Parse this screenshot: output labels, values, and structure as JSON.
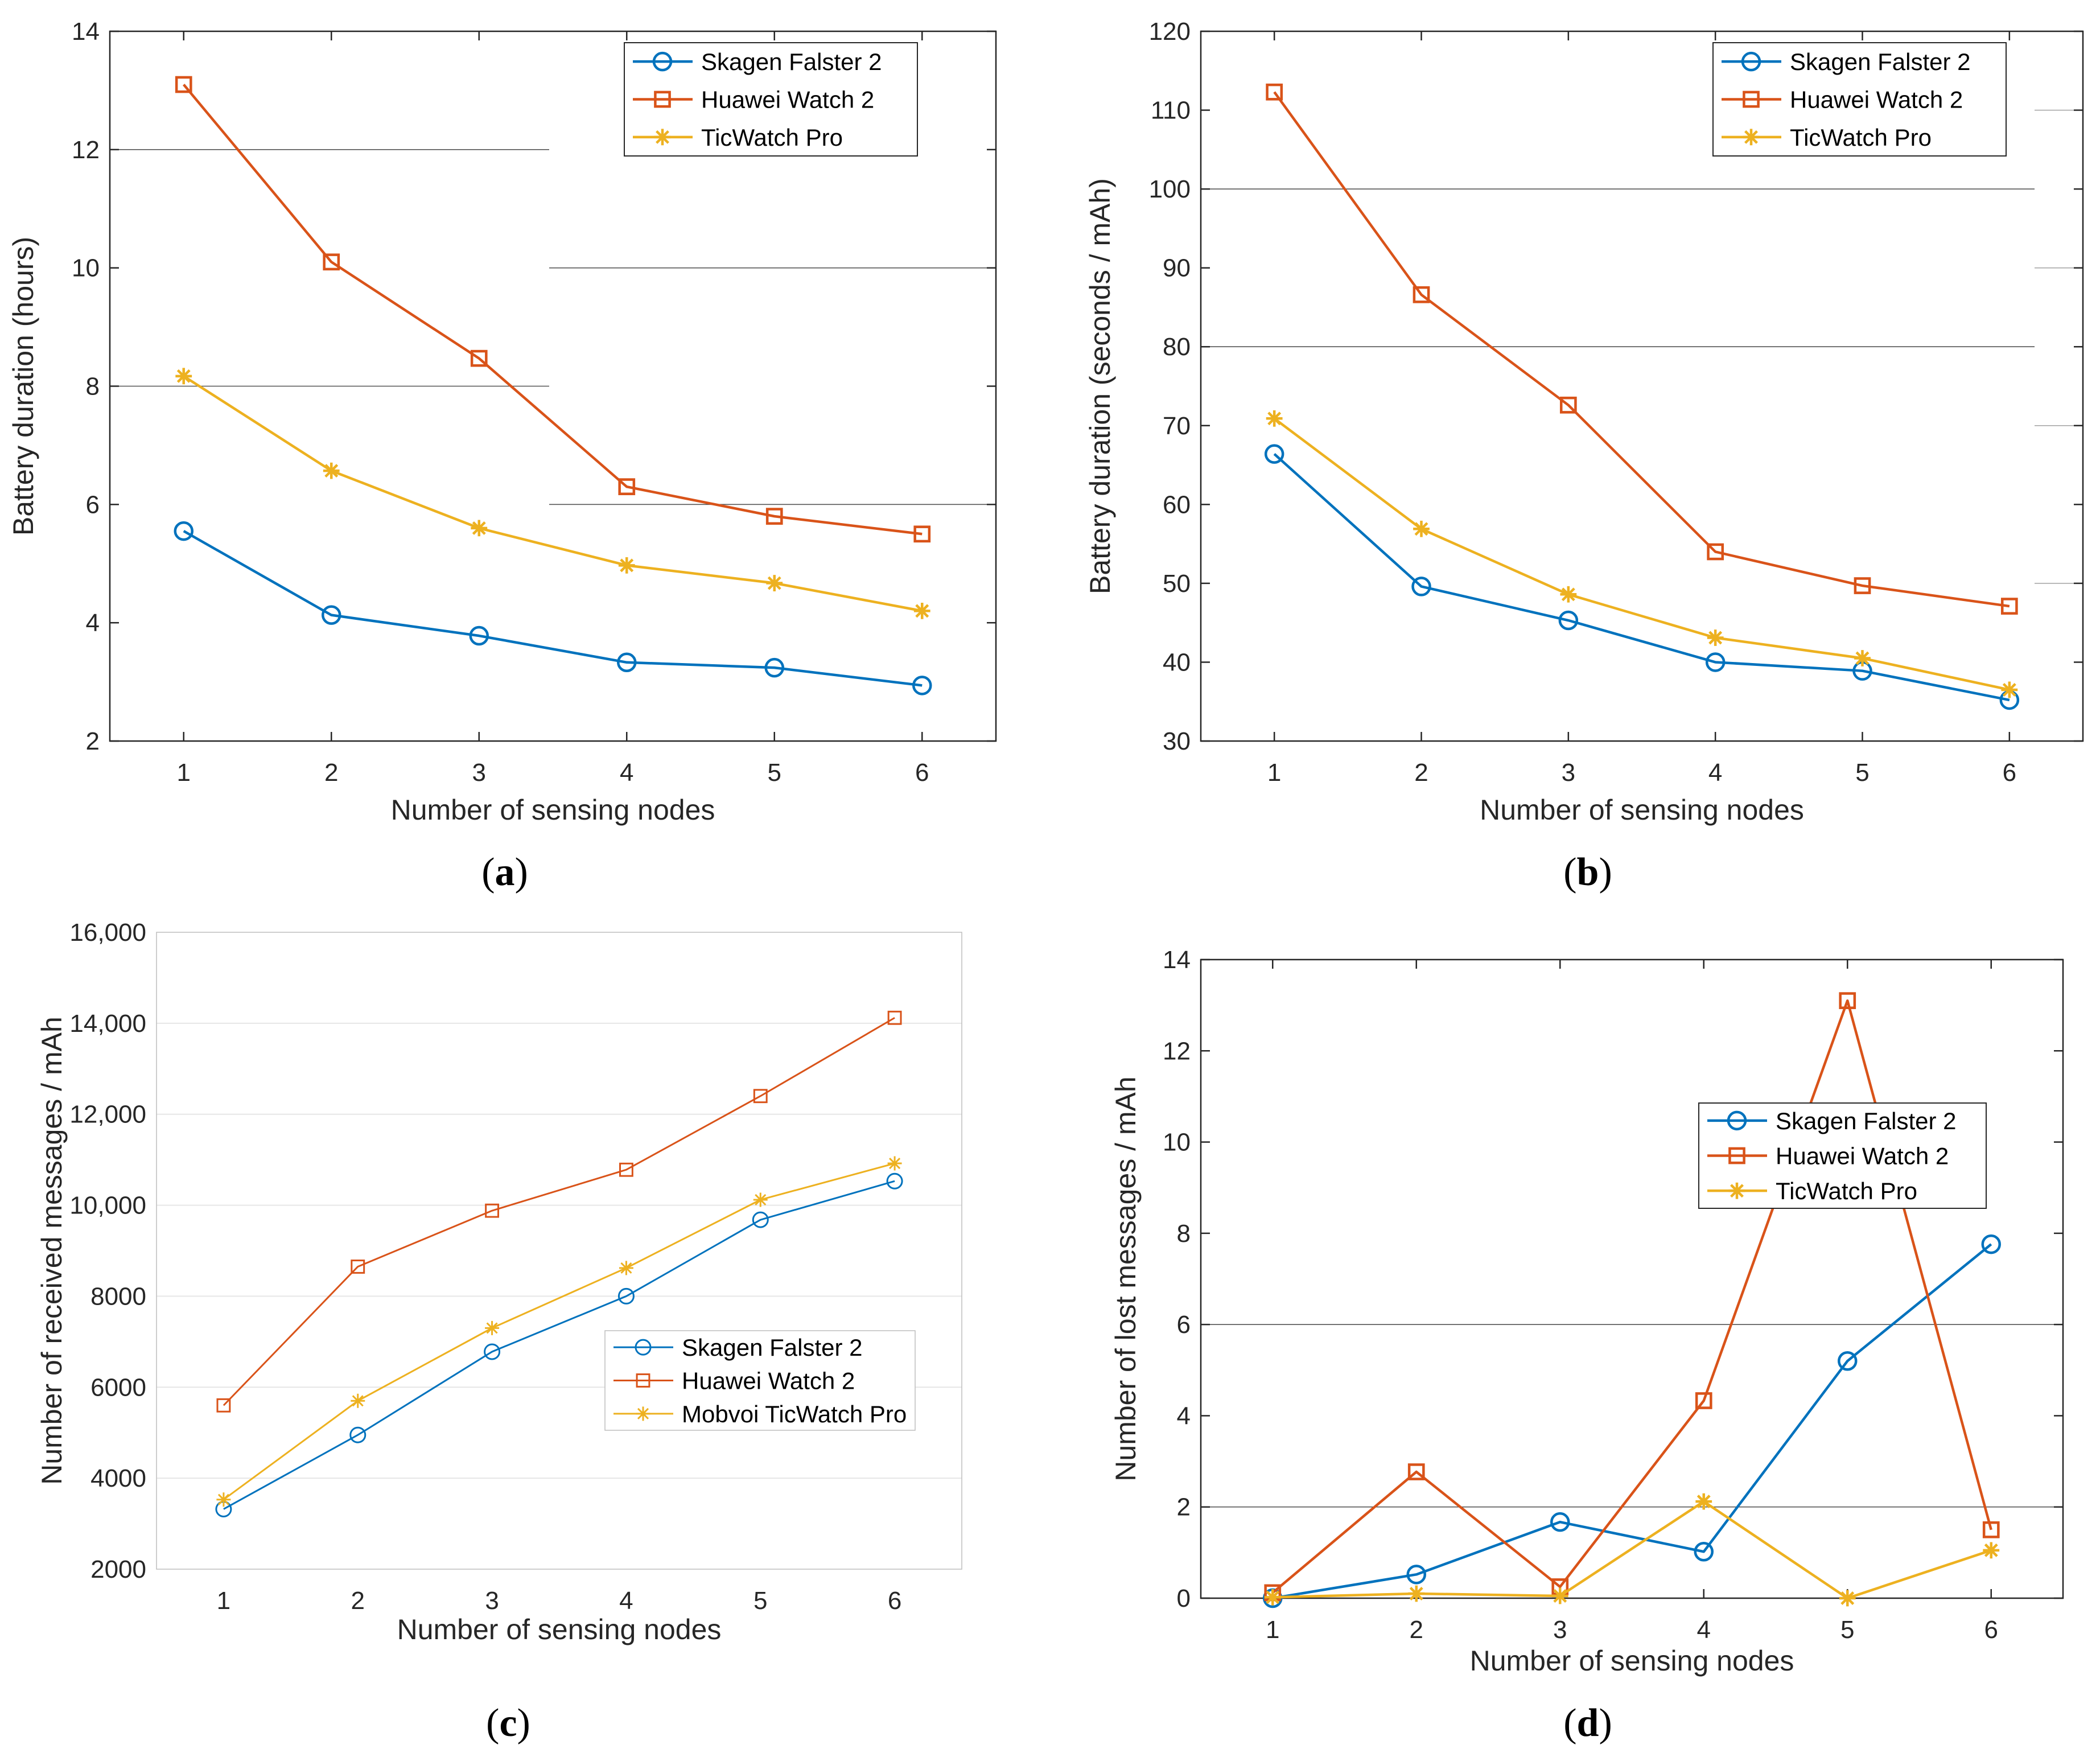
{
  "colors": {
    "skagen": "#0072BD",
    "huawei": "#D95319",
    "ticwatch": "#EDB120",
    "axis": "#262626",
    "grid_c": "#e6e6e6",
    "artifact_line": "#555555"
  },
  "chart_data": [
    {
      "id": "a",
      "type": "line",
      "caption_letter": "a",
      "xlabel": "Number of sensing nodes",
      "ylabel": "Battery duration (hours)",
      "x": [
        1,
        2,
        3,
        4,
        5,
        6
      ],
      "xlim": [
        0.5,
        6.5
      ],
      "ylim": [
        2,
        14
      ],
      "yticks": [
        2,
        4,
        6,
        8,
        10,
        12,
        14
      ],
      "ytick_labels": [
        "2",
        "4",
        "6",
        "8",
        "10",
        "12",
        "14"
      ],
      "legend_position": "top-right",
      "series": [
        {
          "name": "Skagen Falster 2",
          "marker": "circle",
          "color_key": "skagen",
          "values": [
            5.55,
            4.13,
            3.78,
            3.33,
            3.24,
            2.94
          ]
        },
        {
          "name": "Huawei Watch 2",
          "marker": "square",
          "color_key": "huawei",
          "values": [
            13.1,
            10.1,
            8.47,
            6.3,
            5.8,
            5.5
          ]
        },
        {
          "name": "TicWatch Pro",
          "marker": "asterisk",
          "color_key": "ticwatch",
          "values": [
            8.17,
            6.57,
            5.6,
            4.97,
            4.67,
            4.2
          ]
        }
      ]
    },
    {
      "id": "b",
      "type": "line",
      "caption_letter": "b",
      "xlabel": "Number of sensing nodes",
      "ylabel": "Battery duration (seconds / mAh)",
      "x": [
        1,
        2,
        3,
        4,
        5,
        6
      ],
      "xlim": [
        0.5,
        6.5
      ],
      "ylim": [
        30,
        120
      ],
      "yticks": [
        30,
        40,
        50,
        60,
        70,
        80,
        90,
        100,
        110,
        120
      ],
      "ytick_labels": [
        "30",
        "40",
        "50",
        "60",
        "70",
        "80",
        "90",
        "100",
        "110",
        "120"
      ],
      "legend_position": "top-right",
      "series": [
        {
          "name": "Skagen Falster 2",
          "marker": "circle",
          "color_key": "skagen",
          "values": [
            66.4,
            49.6,
            45.3,
            40.0,
            38.9,
            35.2
          ]
        },
        {
          "name": "Huawei Watch 2",
          "marker": "square",
          "color_key": "huawei",
          "values": [
            112.3,
            86.6,
            72.6,
            54.0,
            49.7,
            47.1
          ]
        },
        {
          "name": "TicWatch Pro",
          "marker": "asterisk",
          "color_key": "ticwatch",
          "values": [
            70.9,
            56.9,
            48.6,
            43.1,
            40.5,
            36.5
          ]
        }
      ]
    },
    {
      "id": "c",
      "type": "line",
      "caption_letter": "c",
      "xlabel": "Number of sensing nodes",
      "ylabel": "Number of received messages / mAh",
      "x": [
        1,
        2,
        3,
        4,
        5,
        6
      ],
      "xlim": [
        0.5,
        6.5
      ],
      "ylim": [
        2000,
        16000
      ],
      "yticks": [
        2000,
        4000,
        6000,
        8000,
        10000,
        12000,
        14000,
        16000
      ],
      "ytick_labels": [
        "2000",
        "4000",
        "6000",
        "8000",
        "10,000",
        "12,000",
        "14,000",
        "16,000"
      ],
      "legend_position": "center-right",
      "series": [
        {
          "name": "Skagen Falster 2",
          "marker": "circle",
          "color_key": "skagen",
          "values": [
            3320,
            4950,
            6780,
            8000,
            9680,
            10530
          ]
        },
        {
          "name": "Huawei Watch 2",
          "marker": "square",
          "color_key": "huawei",
          "values": [
            5600,
            8650,
            9880,
            10780,
            12400,
            14120
          ]
        },
        {
          "name": "Mobvoi TicWatch Pro",
          "marker": "asterisk",
          "color_key": "ticwatch",
          "values": [
            3530,
            5700,
            7300,
            8620,
            10120,
            10920
          ]
        }
      ]
    },
    {
      "id": "d",
      "type": "line",
      "caption_letter": "d",
      "xlabel": "Number of sensing nodes",
      "ylabel": "Number of lost messages / mAh",
      "x": [
        1,
        2,
        3,
        4,
        5,
        6
      ],
      "xlim": [
        0.5,
        6.5
      ],
      "ylim": [
        0,
        14
      ],
      "yticks": [
        0,
        2,
        4,
        6,
        8,
        10,
        12,
        14
      ],
      "ytick_labels": [
        "0",
        "2",
        "4",
        "6",
        "8",
        "10",
        "12",
        "14"
      ],
      "legend_position": "center-right",
      "series": [
        {
          "name": "Skagen Falster 2",
          "marker": "circle",
          "color_key": "skagen",
          "values": [
            0.0,
            0.52,
            1.67,
            1.02,
            5.2,
            7.76
          ]
        },
        {
          "name": "Huawei Watch 2",
          "marker": "square",
          "color_key": "huawei",
          "values": [
            0.12,
            2.77,
            0.25,
            4.33,
            13.1,
            1.5
          ]
        },
        {
          "name": "TicWatch Pro",
          "marker": "asterisk",
          "color_key": "ticwatch",
          "values": [
            0.02,
            0.1,
            0.05,
            2.12,
            0.0,
            1.05
          ]
        }
      ]
    }
  ]
}
